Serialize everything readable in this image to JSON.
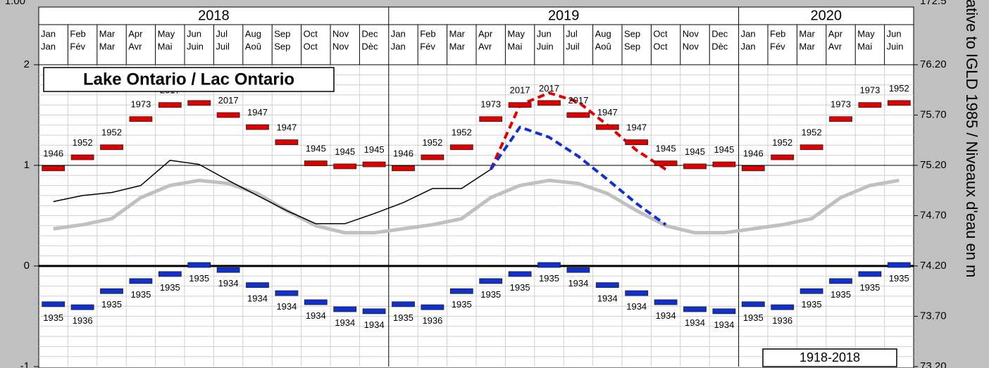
{
  "chart_data": {
    "type": "line",
    "title": "Lake Ontario / Lac Ontario",
    "period_label": "1918-2018",
    "y2_label": "lative to IGLD 1985 / Niveaux d'eau en m",
    "cut_labels": [
      "1.00",
      "172.5"
    ],
    "years": [
      "2018",
      "2019",
      "2020"
    ],
    "months_en": [
      "Jan",
      "Feb",
      "Mar",
      "Apr",
      "May",
      "Jun",
      "Jul",
      "Aug",
      "Sep",
      "Oct",
      "Nov",
      "Dec",
      "Jan",
      "Feb",
      "Mar",
      "Apr",
      "May",
      "Jun",
      "Jul",
      "Aug",
      "Sep",
      "Oct",
      "Nov",
      "Dec",
      "Jan",
      "Feb",
      "Mar",
      "Apr",
      "May",
      "Jun"
    ],
    "months_fr": [
      "Jan",
      "Fév",
      "Mar",
      "Avr",
      "Mai",
      "Juin",
      "Juil",
      "Aoû",
      "Sep",
      "Oct",
      "Nov",
      "Dèc",
      "Jan",
      "Fév",
      "Mar",
      "Avr",
      "Mai",
      "Juin",
      "Juil",
      "Aoû",
      "Sep",
      "Oct",
      "Nov",
      "Dèc",
      "Jan",
      "Fév",
      "Mar",
      "Avr",
      "Mai",
      "Juin"
    ],
    "ylim": [
      -1,
      2
    ],
    "yticks": [
      -1,
      0,
      1,
      2
    ],
    "y2lim": [
      73.2,
      76.2
    ],
    "y2ticks": [
      {
        "value": 73.2,
        "label": "73.20"
      },
      {
        "value": 73.7,
        "label": "73.70"
      },
      {
        "value": 74.2,
        "label": "74.20"
      },
      {
        "value": 74.7,
        "label": "74.70"
      },
      {
        "value": 75.2,
        "label": "75.20"
      },
      {
        "value": 75.7,
        "label": "75.70"
      },
      {
        "value": 76.2,
        "label": "76.20"
      }
    ],
    "grid": true,
    "series": [
      {
        "kind": "marker",
        "color": "#e00000",
        "label_side": "above",
        "values": [
          0.97,
          1.08,
          1.18,
          1.46,
          1.6,
          1.62,
          1.5,
          1.38,
          1.23,
          1.02,
          0.99,
          1.01,
          0.97,
          1.08,
          1.18,
          1.46,
          1.6,
          1.62,
          1.5,
          1.38,
          1.23,
          1.02,
          0.99,
          1.01,
          0.97,
          1.08,
          1.18,
          1.46,
          1.6,
          1.62
        ],
        "record_years": [
          "1946",
          "1952",
          "1952",
          "1973",
          "2017",
          "2017",
          "2017",
          "1947",
          "1947",
          "1945",
          "1945",
          "1945",
          "1946",
          "1952",
          "1952",
          "1973",
          "2017",
          "2017",
          "2017",
          "1947",
          "1947",
          "1945",
          "1945",
          "1945",
          "1946",
          "1952",
          "1952",
          "1973",
          "1973",
          "1952"
        ]
      },
      {
        "kind": "marker",
        "color": "#1030d0",
        "label_side": "below",
        "values": [
          -0.38,
          -0.41,
          -0.25,
          -0.15,
          -0.08,
          0.01,
          -0.04,
          -0.19,
          -0.27,
          -0.36,
          -0.43,
          -0.45,
          -0.38,
          -0.41,
          -0.25,
          -0.15,
          -0.08,
          0.01,
          -0.04,
          -0.19,
          -0.27,
          -0.36,
          -0.43,
          -0.45,
          -0.38,
          -0.41,
          -0.25,
          -0.15,
          -0.08,
          0.01
        ],
        "record_years": [
          "1935",
          "1936",
          "1935",
          "1935",
          "1935",
          "1935",
          "1934",
          "1934",
          "1934",
          "1934",
          "1934",
          "1934",
          "1935",
          "1936",
          "1935",
          "1935",
          "1935",
          "1935",
          "1934",
          "1934",
          "1934",
          "1934",
          "1934",
          "1934",
          "1935",
          "1936",
          "1935",
          "1935",
          "1935",
          "1935"
        ]
      },
      {
        "kind": "line",
        "color": "#c0c0c0",
        "width": 5,
        "style": "solid",
        "values": [
          0.37,
          0.41,
          0.47,
          0.68,
          0.8,
          0.85,
          0.82,
          0.72,
          0.55,
          0.4,
          0.33,
          0.33,
          0.37,
          0.41,
          0.47,
          0.68,
          0.8,
          0.85,
          0.82,
          0.72,
          0.55,
          0.4,
          0.33,
          0.33,
          0.37,
          0.41,
          0.47,
          0.68,
          0.8,
          0.85
        ]
      },
      {
        "kind": "line",
        "color": "#000000",
        "width": 1.5,
        "style": "solid",
        "values": [
          0.64,
          0.7,
          0.73,
          0.8,
          1.05,
          1.01,
          0.85,
          0.7,
          0.55,
          0.42,
          0.42,
          0.52,
          0.63,
          0.77,
          0.77,
          0.96,
          null,
          null,
          null,
          null,
          null,
          null,
          null,
          null,
          null,
          null,
          null,
          null,
          null,
          null
        ]
      },
      {
        "kind": "line",
        "color": "#e00000",
        "width": 4,
        "style": "dashed",
        "values": [
          null,
          null,
          null,
          null,
          null,
          null,
          null,
          null,
          null,
          null,
          null,
          null,
          null,
          null,
          null,
          0.96,
          1.6,
          1.72,
          1.63,
          1.4,
          1.15,
          0.96,
          null,
          null,
          null,
          null,
          null,
          null,
          null,
          null
        ]
      },
      {
        "kind": "line",
        "color": "#1030d0",
        "width": 4,
        "style": "dashed",
        "values": [
          null,
          null,
          null,
          null,
          null,
          null,
          null,
          null,
          null,
          null,
          null,
          null,
          null,
          null,
          null,
          0.96,
          1.38,
          1.28,
          1.09,
          0.86,
          0.62,
          0.41,
          null,
          null,
          null,
          null,
          null,
          null,
          null,
          null
        ]
      }
    ]
  }
}
